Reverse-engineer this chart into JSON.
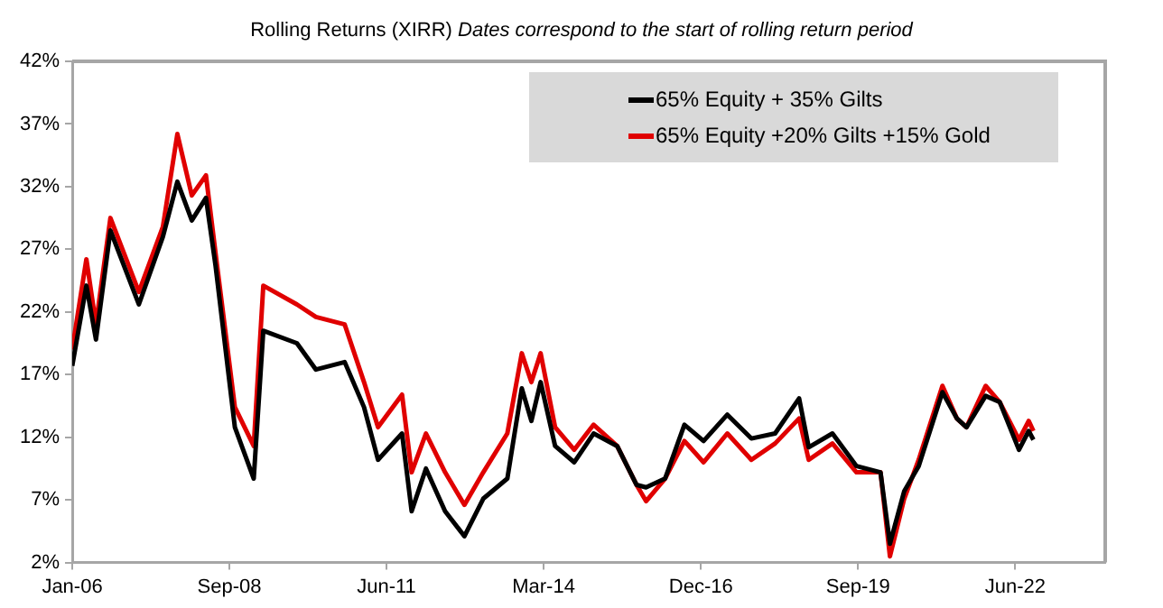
{
  "chart_data": {
    "type": "line",
    "title": "Rolling Returns (XIRR)",
    "subtitle": "Dates correspond to the start of rolling return period",
    "x": [
      "2006-01",
      "2006-04",
      "2006-06",
      "2006-09",
      "2007-03",
      "2007-08",
      "2007-11",
      "2008-02",
      "2008-05",
      "2008-07",
      "2008-11",
      "2009-03",
      "2009-05",
      "2009-12",
      "2010-04",
      "2010-10",
      "2011-02",
      "2011-05",
      "2011-10",
      "2011-12",
      "2012-03",
      "2012-07",
      "2012-11",
      "2013-03",
      "2013-08",
      "2013-11",
      "2014-01",
      "2014-03",
      "2014-06",
      "2014-10",
      "2015-02",
      "2015-07",
      "2015-11",
      "2016-01",
      "2016-05",
      "2016-09",
      "2017-01",
      "2017-06",
      "2017-11",
      "2018-04",
      "2018-09",
      "2018-11",
      "2019-04",
      "2019-09",
      "2020-02",
      "2020-04",
      "2020-07",
      "2020-10",
      "2021-03",
      "2021-06",
      "2021-08",
      "2021-12",
      "2022-03",
      "2022-07",
      "2022-09",
      "2022-10"
    ],
    "series": [
      {
        "name": "65% Equity + 35% Gilts",
        "color": "#000000",
        "values": [
          17.7,
          24.1,
          19.8,
          28.5,
          22.6,
          28,
          32.4,
          29.3,
          31.1,
          25.7,
          12.8,
          8.7,
          20.5,
          19.5,
          17.4,
          18,
          14.4,
          10.2,
          12.3,
          6.1,
          9.5,
          6.1,
          4.1,
          7.1,
          8.7,
          15.9,
          13.3,
          16.4,
          11.3,
          10,
          12.3,
          11.3,
          8.2,
          8,
          8.7,
          13,
          11.7,
          13.8,
          11.9,
          12.3,
          15.1,
          11.2,
          12.3,
          9.7,
          9.2,
          3.5,
          7.7,
          9.7,
          15.6,
          13.5,
          12.8,
          15.3,
          14.8,
          11,
          12.5,
          11.8
        ]
      },
      {
        "name": "65% Equity +20% Gilts +15% Gold",
        "color": "#e00000",
        "values": [
          19,
          26.2,
          21,
          29.5,
          23.6,
          28.8,
          36.2,
          31.3,
          32.9,
          26.7,
          14.4,
          11.3,
          24.1,
          22.6,
          21.6,
          21,
          16.4,
          12.8,
          15.4,
          9.2,
          12.3,
          9.2,
          6.6,
          9.2,
          12.3,
          18.7,
          16.4,
          18.7,
          12.8,
          11,
          13,
          11.3,
          8.2,
          6.9,
          8.7,
          11.7,
          10,
          12.3,
          10.2,
          11.5,
          13.5,
          10.2,
          11.5,
          9.2,
          9.2,
          2.5,
          7.1,
          10.2,
          16.1,
          13.5,
          12.8,
          16.1,
          14.8,
          11.8,
          13.3,
          12.5
        ]
      }
    ],
    "xlim": [
      "2006-01-01",
      "2024-01-01"
    ],
    "xticks": [
      {
        "value": "2006-01-01",
        "label": "Jan-06"
      },
      {
        "value": "2008-09-27",
        "label": "Sep-08"
      },
      {
        "value": "2011-06-24",
        "label": "Jun-11"
      },
      {
        "value": "2014-03-20",
        "label": "Mar-14"
      },
      {
        "value": "2016-12-15",
        "label": "Dec-16"
      },
      {
        "value": "2019-09-11",
        "label": "Sep-19"
      },
      {
        "value": "2022-06-07",
        "label": "Jun-22"
      }
    ],
    "ylim": [
      2,
      42
    ],
    "yticks": [
      {
        "value": 2,
        "label": "2%"
      },
      {
        "value": 7,
        "label": "7%"
      },
      {
        "value": 12,
        "label": "12%"
      },
      {
        "value": 17,
        "label": "17%"
      },
      {
        "value": 22,
        "label": "22%"
      },
      {
        "value": 27,
        "label": "27%"
      },
      {
        "value": 32,
        "label": "32%"
      },
      {
        "value": 37,
        "label": "37%"
      },
      {
        "value": 42,
        "label": "42%"
      }
    ],
    "grid": false,
    "legend": "top right",
    "marker": "none",
    "line_style": "solid"
  }
}
